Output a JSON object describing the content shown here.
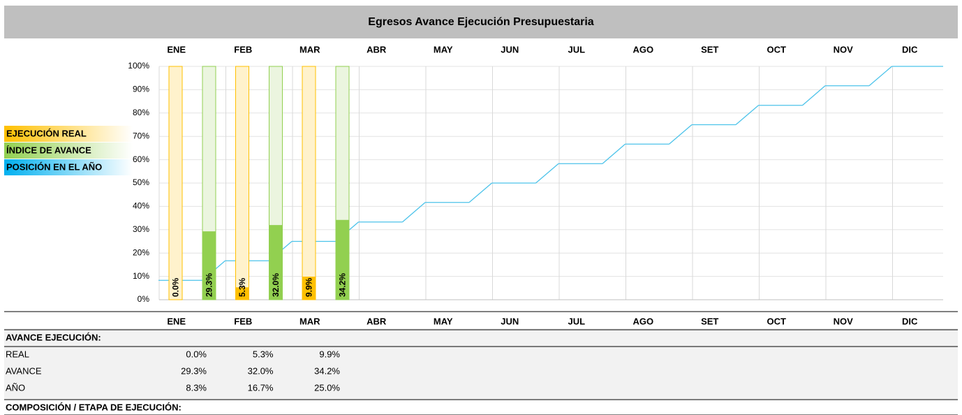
{
  "chart_data": {
    "type": "bar-line",
    "title": "Egresos Avance Ejecución Presupuestaria",
    "categories": [
      "ENE",
      "FEB",
      "MAR",
      "ABR",
      "MAY",
      "JUN",
      "JUL",
      "AGO",
      "SET",
      "OCT",
      "NOV",
      "DIC"
    ],
    "series": [
      {
        "name": "EJECUCIÓN REAL",
        "kind": "bar",
        "color": "#ffc000",
        "track_color": "#fff2cc",
        "values": [
          0.0,
          5.3,
          9.9,
          null,
          null,
          null,
          null,
          null,
          null,
          null,
          null,
          null
        ],
        "value_labels": [
          "0.0%",
          "5.3%",
          "9.9%",
          null,
          null,
          null,
          null,
          null,
          null,
          null,
          null,
          null
        ]
      },
      {
        "name": "ÍNDICE DE AVANCE",
        "kind": "bar",
        "color": "#92d050",
        "track_color": "#ebf5df",
        "values": [
          29.3,
          32.0,
          34.2,
          null,
          null,
          null,
          null,
          null,
          null,
          null,
          null,
          null
        ],
        "value_labels": [
          "29.3%",
          "32.0%",
          "34.2%",
          null,
          null,
          null,
          null,
          null,
          null,
          null,
          null,
          null
        ]
      },
      {
        "name": "POSICIÓN EN EL AÑO",
        "kind": "line",
        "color": "#4cc3ea",
        "legend_color": "#00b0f0",
        "values": [
          8.3,
          16.7,
          25.0,
          33.3,
          41.7,
          50.0,
          58.3,
          66.7,
          75.0,
          83.3,
          91.7,
          100.0
        ]
      }
    ],
    "ylim": [
      0,
      100
    ],
    "yticks": [
      {
        "value": 0,
        "label": "0%"
      },
      {
        "value": 10,
        "label": "10%"
      },
      {
        "value": 20,
        "label": "20%"
      },
      {
        "value": 30,
        "label": "30%"
      },
      {
        "value": 40,
        "label": "40%"
      },
      {
        "value": 50,
        "label": "50%"
      },
      {
        "value": 60,
        "label": "60%"
      },
      {
        "value": 70,
        "label": "70%"
      },
      {
        "value": 80,
        "label": "80%"
      },
      {
        "value": 90,
        "label": "90%"
      },
      {
        "value": 100,
        "label": "100%"
      }
    ],
    "grid": true,
    "legend": "left"
  },
  "table": {
    "section_title": "AVANCE EJECUCIÓN:",
    "rows": [
      [
        "REAL",
        "0.0%",
        "5.3%",
        "9.9%"
      ],
      [
        "AVANCE",
        "29.3%",
        "32.0%",
        "34.2%"
      ],
      [
        "AÑO",
        "8.3%",
        "16.7%",
        "25.0%"
      ]
    ],
    "footer": "COMPOSICIÓN / ETAPA DE EJECUCIÓN:"
  }
}
